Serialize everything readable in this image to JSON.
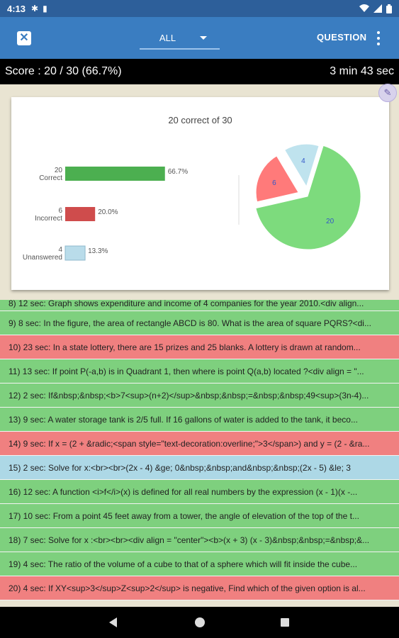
{
  "status_bar": {
    "time": "4:13",
    "icons": [
      "gear-icon",
      "sd-card-icon",
      "wifi-icon",
      "signal-icon",
      "battery-icon"
    ]
  },
  "toolbar": {
    "close_glyph": "✕",
    "filter_value": "ALL",
    "question_label": "QUESTION"
  },
  "score": {
    "text": "Score : 20 / 30 (66.7%)",
    "time": "3 min 43 sec"
  },
  "chart_data": {
    "title": "20 correct of 30",
    "bar": {
      "type": "bar",
      "orientation": "horizontal",
      "categories": [
        {
          "count": "20",
          "label": "Correct",
          "value": 66.7,
          "value_label": "66.7%",
          "color": "#4caf50"
        },
        {
          "count": "6",
          "label": "Incorrect",
          "value": 20.0,
          "value_label": "20.0%",
          "color": "#cf4c4c"
        },
        {
          "count": "4",
          "label": "Unanswered",
          "value": 13.3,
          "value_label": "13.3%",
          "color": "#b9dcea"
        }
      ],
      "xlim": [
        0,
        100
      ]
    },
    "pie": {
      "type": "pie",
      "slices": [
        {
          "label": "20",
          "value": 20,
          "color": "#7ddb7d",
          "exploded": false
        },
        {
          "label": "6",
          "value": 6,
          "color": "#ff7a7a",
          "exploded": true
        },
        {
          "label": "4",
          "value": 4,
          "color": "#bfe3ee",
          "exploded": true
        }
      ]
    }
  },
  "questions": [
    {
      "text": "8) 12 sec: Graph shows expenditure and income of 4 companies for the year 2010.<div align...",
      "status": "correct",
      "partial": true
    },
    {
      "text": "9) 8 sec: In the figure, the area of rectangle ABCD is 80. What is the area of square PQRS?<di...",
      "status": "correct"
    },
    {
      "text": "10) 23 sec: In a state lottery, there are 15 prizes and 25 blanks. A lottery is drawn at random...",
      "status": "incorrect"
    },
    {
      "text": "11) 13 sec: If point P(-a,b) is in Quadrant 1, then where is point Q(a,b) located ?<div align = \"...",
      "status": "correct"
    },
    {
      "text": "12) 2 sec: If&nbsp;&nbsp;<b>7<sup>(n+2)</sup>&nbsp;&nbsp;=&nbsp;&nbsp;49<sup>(3n-4)...",
      "status": "correct"
    },
    {
      "text": "13) 9 sec: A water storage tank is 2/5 full. If 16 gallons of water is added to the tank, it beco...",
      "status": "correct"
    },
    {
      "text": "14) 9 sec: If x = (2 + &radic;<span style=\"text-decoration:overline;\">3</span>) and y = (2 - &ra...",
      "status": "incorrect"
    },
    {
      "text": "15) 2 sec: Solve for x:<br><br>(2x - 4) &ge; 0&nbsp;&nbsp;and&nbsp;&nbsp;(2x - 5) &le; 3",
      "status": "unanswered"
    },
    {
      "text": "16) 12 sec: A function <i>f</i>(x) is defined for all real numbers by the expression (x - 1)(x -...",
      "status": "correct"
    },
    {
      "text": "17) 10 sec: From a point 45 feet away from a tower, the angle of elevation of the top of the t...",
      "status": "correct"
    },
    {
      "text": "18) 7 sec: Solve for x :<br><br><div align = \"center\"><b>(x + 3) (x - 3)&nbsp;&nbsp;=&nbsp;&...",
      "status": "correct"
    },
    {
      "text": "19) 4 sec: The ratio of the volume of a cube to that of a sphere which will fit inside the cube...",
      "status": "correct"
    },
    {
      "text": "20) 4 sec: If XY<sup>3</sup>Z<sup>2</sup> is negative, Find which of the given option is al...",
      "status": "incorrect"
    }
  ]
}
